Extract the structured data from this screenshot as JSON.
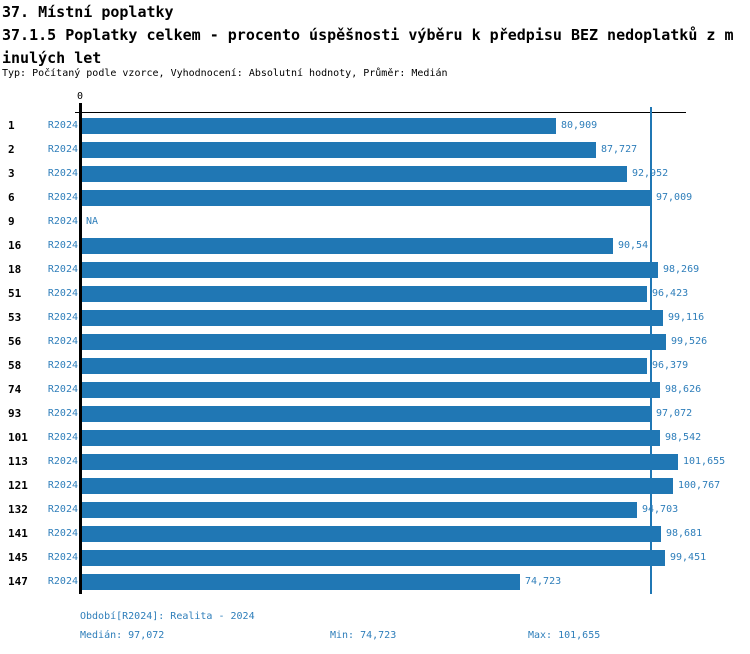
{
  "header": {
    "title_line1": "37. Místní poplatky",
    "title_line2": "37.1.5 Poplatky celkem - procento úspěšnosti výběru k předpisu BEZ nedoplatků z m",
    "title_line3": "inulých let",
    "meta": "Typ: Počítaný podle vzorce, Vyhodnocení: Absolutní hodnoty, Průměr: Medián"
  },
  "chart_data": {
    "type": "bar",
    "orientation": "horizontal",
    "series_label": "R2024",
    "categories": [
      "1",
      "2",
      "3",
      "6",
      "9",
      "16",
      "18",
      "51",
      "53",
      "56",
      "58",
      "74",
      "93",
      "101",
      "113",
      "121",
      "132",
      "141",
      "145",
      "147"
    ],
    "values": [
      80.909,
      87.727,
      92.952,
      97.009,
      null,
      90.54,
      98.269,
      96.423,
      99.116,
      99.526,
      96.379,
      98.626,
      97.072,
      98.542,
      101.655,
      100.767,
      94.703,
      98.681,
      99.451,
      74.723
    ],
    "value_labels": [
      "80,909",
      "87,727",
      "92,952",
      "97,009",
      "NA",
      "90,54",
      "98,269",
      "96,423",
      "99,116",
      "99,526",
      "96,379",
      "98,626",
      "97,072",
      "98,542",
      "101,655",
      "100,767",
      "94,703",
      "98,681",
      "99,451",
      "74,723"
    ],
    "axis": {
      "tick_zero": "0",
      "min": 0,
      "max": 103
    },
    "median_line_value": 97.072,
    "bar_color": "#2077b4",
    "median_line_color": "#2077b4",
    "legend_position": "none",
    "grid": false
  },
  "footer": {
    "period": "Období[R2024]: Realita - 2024",
    "median": "Medián: 97,072",
    "min": "Min: 74,723",
    "max": "Max: 101,655"
  }
}
